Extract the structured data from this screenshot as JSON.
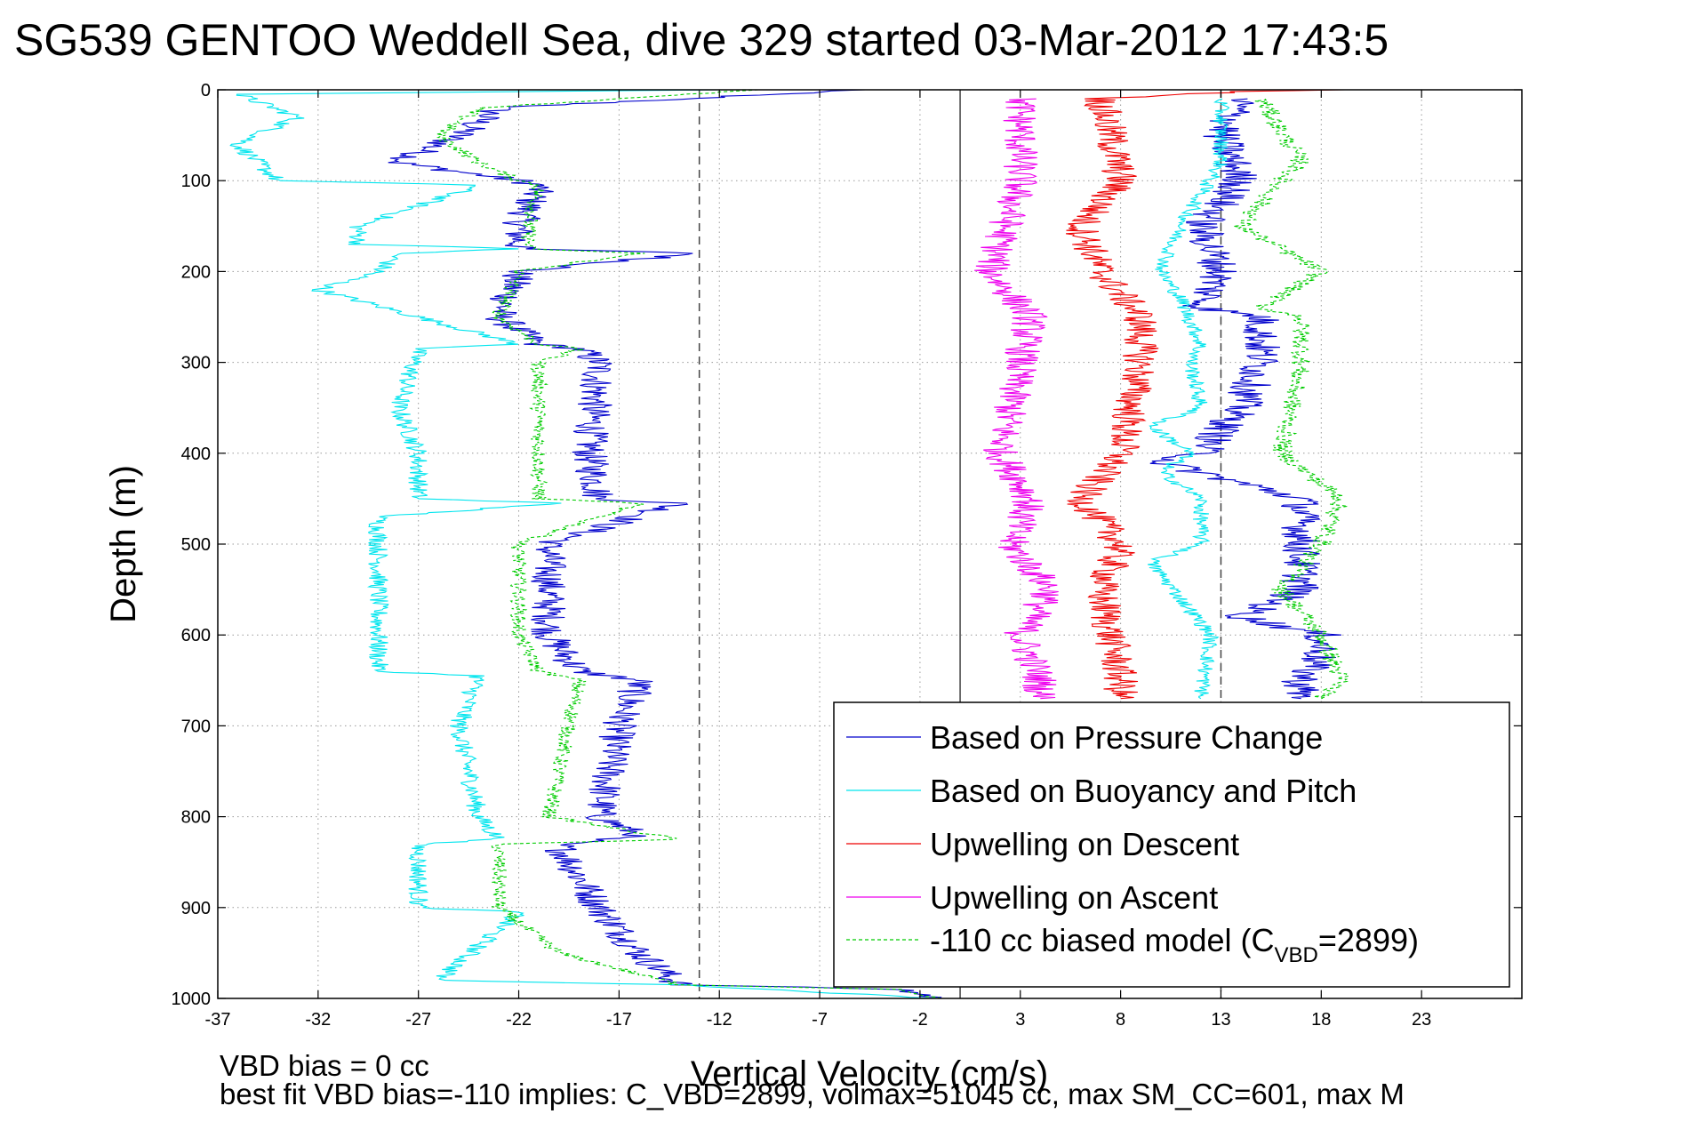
{
  "chart_data": {
    "type": "line",
    "title": "SG539 GENTOO Weddell Sea, dive 329 started 03-Mar-2012 17:43:5",
    "xlabel": "Vertical Velocity (cm/s)",
    "ylabel": "Depth (m)",
    "xlim": [
      -37,
      28
    ],
    "ylim": [
      1000,
      0
    ],
    "y_reversed": true,
    "grid": true,
    "x_ticks": [
      -37,
      -32,
      -27,
      -22,
      -17,
      -12,
      -7,
      -2,
      3,
      8,
      13,
      18,
      23
    ],
    "y_ticks": [
      0,
      100,
      200,
      300,
      400,
      500,
      600,
      700,
      800,
      900,
      1000
    ],
    "reference_lines": [
      {
        "x": -13,
        "style": "dashed"
      },
      {
        "x": 0,
        "style": "solid"
      },
      {
        "x": 13,
        "style": "dashed"
      }
    ],
    "legend": {
      "position": "bottom-right",
      "entries": [
        {
          "label": "Based on Pressure Change",
          "color": "#0000cc",
          "style": "solid"
        },
        {
          "label": "Based on Buoyancy and Pitch",
          "color": "#00e5ee",
          "style": "solid"
        },
        {
          "label": "Upwelling on Descent",
          "color": "#ee0000",
          "style": "solid"
        },
        {
          "label": "Upwelling on Ascent",
          "color": "#ee00ee",
          "style": "solid"
        },
        {
          "label_prefix": "-110 cc biased model (C",
          "label_sub": "VBD",
          "label_suffix": "=2899)",
          "color": "#00cc00",
          "style": "dashed"
        }
      ]
    },
    "series": [
      {
        "name": "Based on Pressure Change",
        "color": "#0000cc",
        "dash": false,
        "jitter": 0.9,
        "depths": [
          0,
          20,
          50,
          80,
          100,
          105,
          150,
          175,
          180,
          200,
          250,
          280,
          285,
          300,
          400,
          450,
          455,
          500,
          600,
          640,
          650,
          700,
          800,
          820,
          830,
          900,
          950,
          985,
          990,
          1000
        ],
        "values": [
          -5,
          -23,
          -25,
          -28,
          -22,
          -21,
          -22,
          -22,
          -13,
          -22,
          -23,
          -21,
          -19,
          -18,
          -18.5,
          -18,
          -14,
          -20.5,
          -20.5,
          -19,
          -16,
          -17,
          -18,
          -16,
          -20,
          -18,
          -16,
          -14,
          -3,
          -1
        ]
      },
      {
        "name": "Based on Buoyancy and Pitch",
        "color": "#00e5ee",
        "dash": false,
        "jitter": 0.5,
        "depths": [
          0,
          5,
          30,
          60,
          100,
          105,
          150,
          170,
          175,
          180,
          200,
          220,
          280,
          285,
          350,
          400,
          450,
          455,
          470,
          500,
          600,
          640,
          645,
          700,
          800,
          825,
          830,
          900,
          905,
          980,
          985,
          1000
        ],
        "values": [
          -12,
          -36,
          -33,
          -36,
          -34,
          -24,
          -30,
          -30,
          -22,
          -28,
          -29,
          -32,
          -22,
          -27,
          -28,
          -27,
          -27,
          -20,
          -29,
          -29,
          -29,
          -29,
          -24,
          -25,
          -24,
          -23,
          -27,
          -27,
          -22,
          -26,
          -14,
          -1
        ]
      },
      {
        "name": "-110 cc biased model (C_VBD=2899)",
        "color": "#00cc00",
        "dash": true,
        "jitter": 0.4,
        "depths": [
          0,
          20,
          50,
          80,
          100,
          105,
          150,
          175,
          180,
          200,
          250,
          280,
          285,
          300,
          400,
          450,
          455,
          500,
          600,
          640,
          650,
          700,
          800,
          825,
          830,
          900,
          950,
          985,
          990,
          1000
        ],
        "values": [
          -10,
          -24,
          -26,
          -24,
          -22,
          -21,
          -21.5,
          -21.5,
          -16,
          -22,
          -23,
          -21,
          -19,
          -21,
          -21,
          -21,
          -16,
          -22,
          -22,
          -21,
          -19,
          -19.5,
          -20.5,
          -14,
          -23,
          -23,
          -20,
          -14,
          -3,
          -1
        ]
      },
      {
        "name": "Upwelling on Ascent",
        "color": "#ee00ee",
        "dash": false,
        "jitter": 0.9,
        "depths": [
          10,
          100,
          200,
          250,
          300,
          400,
          450,
          500,
          550,
          600,
          650,
          670
        ],
        "values": [
          3,
          3,
          1.5,
          3.5,
          3,
          2,
          3.5,
          2.5,
          4.5,
          3,
          4,
          4
        ]
      },
      {
        "name": "Upwelling on Descent",
        "color": "#ee0000",
        "dash": false,
        "jitter": 0.9,
        "depths": [
          0,
          2,
          10,
          50,
          100,
          150,
          200,
          250,
          300,
          400,
          450,
          500,
          550,
          600,
          650,
          670
        ],
        "values": [
          20,
          14,
          7,
          7.5,
          8,
          6,
          7,
          9,
          9,
          8,
          6,
          8,
          7,
          7.5,
          8,
          8
        ]
      },
      {
        "name": "Based on Pressure Change",
        "color": "#0000cc",
        "dash": false,
        "jitter": 1.0,
        "depths": [
          10,
          50,
          100,
          150,
          200,
          240,
          250,
          300,
          350,
          400,
          410,
          450,
          500,
          550,
          580,
          600,
          620,
          650,
          670
        ],
        "values": [
          14,
          13,
          14,
          12,
          13,
          12,
          15,
          15,
          14,
          12,
          10,
          17,
          17,
          17,
          14,
          18,
          18,
          17,
          17
        ]
      },
      {
        "name": "Based on Buoyancy and Pitch",
        "color": "#00e5ee",
        "dash": false,
        "jitter": 0.4,
        "depths": [
          10,
          80,
          150,
          200,
          230,
          280,
          300,
          350,
          370,
          400,
          420,
          450,
          500,
          520,
          600,
          670
        ],
        "values": [
          13,
          13,
          11,
          10,
          11,
          12,
          11.5,
          12,
          9.5,
          11.5,
          10,
          12,
          12,
          9.5,
          12.5,
          12
        ]
      },
      {
        "name": "-110 cc biased model (C_VBD=2899)",
        "color": "#00cc00",
        "dash": true,
        "jitter": 0.5,
        "depths": [
          10,
          80,
          100,
          150,
          200,
          240,
          250,
          300,
          400,
          450,
          500,
          550,
          600,
          650,
          670
        ],
        "values": [
          15,
          17,
          16,
          14,
          18,
          15,
          17,
          17,
          16,
          19,
          18,
          16,
          18,
          19,
          18
        ]
      }
    ]
  },
  "footer": {
    "line1": "VBD bias = 0 cc",
    "line2": "best fit VBD bias=-110 implies: C_VBD=2899, volmax=51045 cc, max SM_CC=601, max M"
  }
}
